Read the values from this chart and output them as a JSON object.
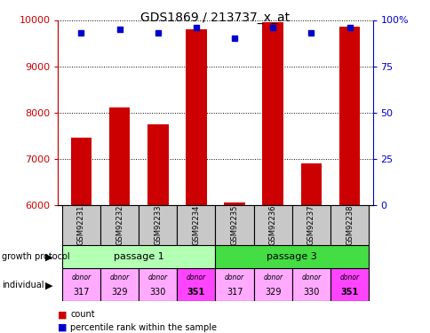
{
  "title": "GDS1869 / 213737_x_at",
  "samples": [
    "GSM92231",
    "GSM92232",
    "GSM92233",
    "GSM92234",
    "GSM92235",
    "GSM92236",
    "GSM92237",
    "GSM92238"
  ],
  "counts": [
    7450,
    8100,
    7750,
    9800,
    6050,
    9950,
    6900,
    9850
  ],
  "percentiles": [
    93,
    95,
    93,
    96,
    90,
    96,
    93,
    96
  ],
  "ylim_left": [
    6000,
    10000
  ],
  "ylim_right": [
    0,
    100
  ],
  "yticks_left": [
    6000,
    7000,
    8000,
    9000,
    10000
  ],
  "yticks_right": [
    0,
    25,
    50,
    75,
    100
  ],
  "bar_color": "#cc0000",
  "dot_color": "#0000cc",
  "passage1_color": "#b3ffb3",
  "passage3_color": "#44dd44",
  "donor_colors": [
    "#ffaaff",
    "#ffaaff",
    "#ffaaff",
    "#ff44ff",
    "#ffaaff",
    "#ffaaff",
    "#ffaaff",
    "#ff44ff"
  ],
  "growth_protocol_groups": [
    {
      "label": "passage 1",
      "start": 0,
      "end": 3
    },
    {
      "label": "passage 3",
      "start": 4,
      "end": 7
    }
  ],
  "individual_labels": [
    "317",
    "329",
    "330",
    "351",
    "317",
    "329",
    "330",
    "351"
  ],
  "left_axis_color": "#cc0000",
  "right_axis_color": "#0000cc",
  "bg_color": "#ffffff"
}
